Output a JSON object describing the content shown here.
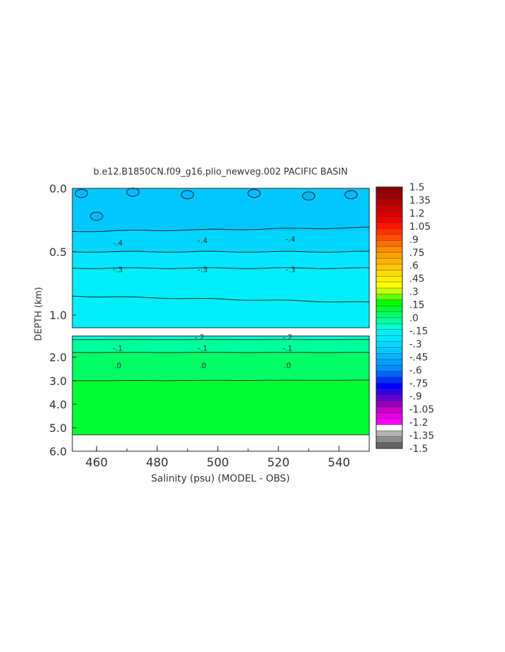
{
  "chart_data": {
    "type": "heatmap",
    "title": "b.e12.B1850CN.f09_g16.plio_newveg.002 PACIFIC BASIN",
    "xlabel": "Salinity (psu) (MODEL - OBS)",
    "ylabel": "DEPTH (km)",
    "x_range": [
      452,
      550
    ],
    "x_ticks": [
      "460",
      "480",
      "500",
      "520",
      "540"
    ],
    "x_tick_values": [
      460,
      480,
      500,
      520,
      540
    ],
    "upper_panel": {
      "depth_range": [
        0.0,
        1.1
      ],
      "y_ticks": [
        "0.0",
        "0.5",
        "1.0"
      ],
      "y_tick_values": [
        0.0,
        0.5,
        1.0
      ]
    },
    "lower_panel": {
      "depth_range": [
        1.1,
        6.0
      ],
      "y_ticks": [
        "2.0",
        "3.0",
        "4.0",
        "5.0",
        "6.0"
      ],
      "y_tick_values": [
        2.0,
        3.0,
        4.0,
        5.0,
        6.0
      ],
      "data_bottom_depth": 5.3
    },
    "bands": [
      {
        "panel": "upper",
        "value": -0.45,
        "color": "#00c8ff",
        "from": 0.0,
        "to": 0.34
      },
      {
        "panel": "upper",
        "value": -0.4,
        "color": "#00d7ff",
        "from": 0.34,
        "to": 0.5
      },
      {
        "panel": "upper",
        "value": -0.35,
        "color": "#00e6ff",
        "from": 0.5,
        "to": 0.63
      },
      {
        "panel": "upper",
        "value": -0.3,
        "color": "#00eefa",
        "from": 0.63,
        "to": 1.1
      },
      {
        "panel": "lower",
        "value": -0.2,
        "color": "#00ffd2",
        "from": 1.1,
        "to": 1.25
      },
      {
        "panel": "lower",
        "value": -0.1,
        "color": "#00ff9c",
        "from": 1.25,
        "to": 1.8
      },
      {
        "panel": "lower",
        "value": 0.0,
        "color": "#00ff64",
        "from": 1.8,
        "to": 3.0
      },
      {
        "panel": "lower",
        "value": 0.05,
        "color": "#00ff32",
        "from": 3.0,
        "to": 5.3
      }
    ],
    "contour_labels": [
      {
        "text": "-.4",
        "x": 467,
        "depth": 0.43
      },
      {
        "text": "-.4",
        "x": 495,
        "depth": 0.41
      },
      {
        "text": "-.4",
        "x": 524,
        "depth": 0.4
      },
      {
        "text": "-.3",
        "x": 467,
        "depth": 0.64
      },
      {
        "text": "-.3",
        "x": 495,
        "depth": 0.64
      },
      {
        "text": "-.3",
        "x": 524,
        "depth": 0.64
      },
      {
        "text": "-.2",
        "x": 494,
        "depth": 1.14
      },
      {
        "text": "-.2",
        "x": 523,
        "depth": 1.14
      },
      {
        "text": "-.1",
        "x": 467,
        "depth": 1.62
      },
      {
        "text": "-.1",
        "x": 495,
        "depth": 1.62
      },
      {
        "text": "-.1",
        "x": 523,
        "depth": 1.62
      },
      {
        "text": ".0",
        "x": 467,
        "depth": 2.35
      },
      {
        "text": ".0",
        "x": 495,
        "depth": 2.35
      },
      {
        "text": ".0",
        "x": 523,
        "depth": 2.35
      }
    ],
    "colorbar": {
      "labels": [
        "1.5",
        "1.35",
        "1.2",
        "1.05",
        ".9",
        ".75",
        ".6",
        ".45",
        ".3",
        ".15",
        ".0",
        "-.15",
        "-.3",
        "-.45",
        "-.6",
        "-.75",
        "-.9",
        "-1.05",
        "-1.2",
        "-1.35",
        "-1.5"
      ],
      "colors": [
        "#8b0000",
        "#a00000",
        "#b40000",
        "#c80000",
        "#dc0000",
        "#f00000",
        "#ff1400",
        "#ff3200",
        "#ff5000",
        "#ff6e00",
        "#ff8c00",
        "#ffa000",
        "#ffb400",
        "#ffc800",
        "#ffdc00",
        "#fff000",
        "#ffff00",
        "#c8ff00",
        "#64ff00",
        "#00ff00",
        "#00ff32",
        "#00ff64",
        "#00ff9c",
        "#00ffd2",
        "#00eefa",
        "#00e6ff",
        "#00d7ff",
        "#00c8ff",
        "#00b4ff",
        "#00a0ff",
        "#008cff",
        "#0064ff",
        "#0032ff",
        "#0000ff",
        "#3200e6",
        "#6400d2",
        "#9600be",
        "#c800c8",
        "#e600e6",
        "#ff00ff",
        "#ffffff",
        "#b4b4b4",
        "#8c8c8c",
        "#646464"
      ]
    }
  }
}
